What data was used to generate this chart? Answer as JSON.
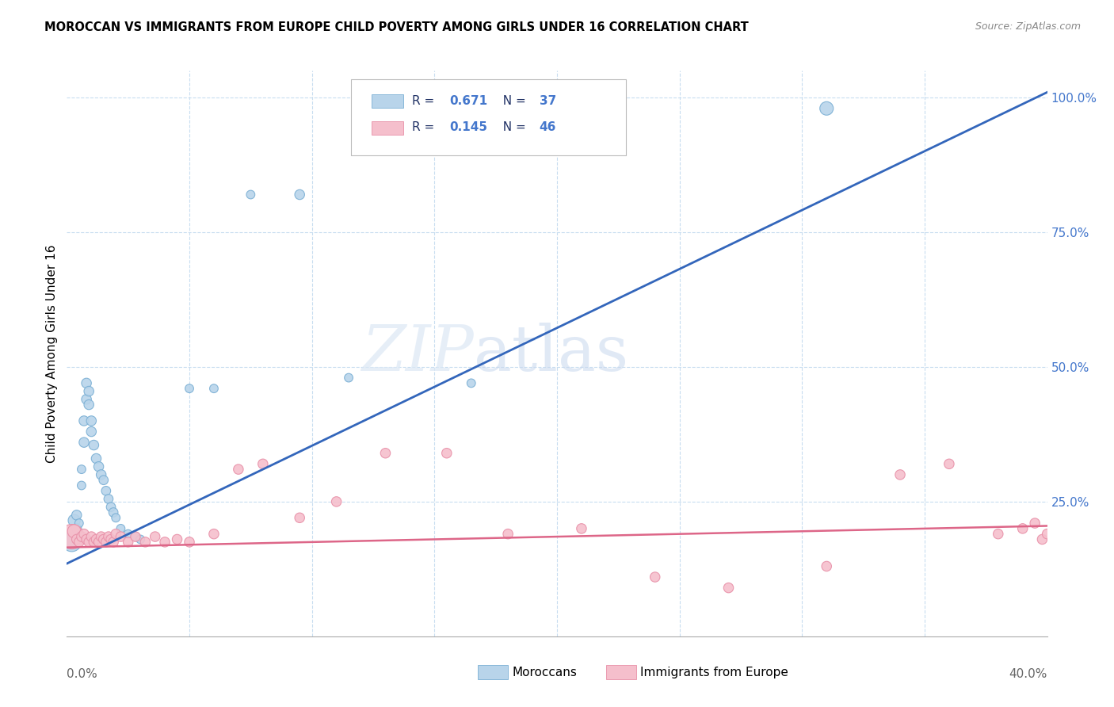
{
  "title": "MOROCCAN VS IMMIGRANTS FROM EUROPE CHILD POVERTY AMONG GIRLS UNDER 16 CORRELATION CHART",
  "source": "Source: ZipAtlas.com",
  "ylabel": "Child Poverty Among Girls Under 16",
  "xmin": 0.0,
  "xmax": 0.4,
  "ymin": 0.0,
  "ymax": 1.05,
  "moroccan_color": "#b8d4ea",
  "moroccan_edge_color": "#7aafd4",
  "europe_color": "#f5bfcc",
  "europe_edge_color": "#e890a8",
  "line_blue": "#3366bb",
  "line_pink": "#dd6688",
  "legend_R_blue": "R = 0.671",
  "legend_N_blue": "N = 37",
  "legend_R_pink": "R = 0.145",
  "legend_N_pink": "N = 46",
  "watermark_zip": "ZIP",
  "watermark_atlas": "atlas",
  "blue_line_x0": 0.0,
  "blue_line_y0": 0.135,
  "blue_line_x1": 0.4,
  "blue_line_y1": 1.01,
  "pink_line_x0": 0.0,
  "pink_line_y0": 0.165,
  "pink_line_x1": 0.4,
  "pink_line_y1": 0.205,
  "moroccan_x": [
    0.002,
    0.003,
    0.004,
    0.004,
    0.005,
    0.005,
    0.006,
    0.006,
    0.007,
    0.007,
    0.008,
    0.008,
    0.009,
    0.009,
    0.01,
    0.01,
    0.011,
    0.012,
    0.013,
    0.014,
    0.015,
    0.016,
    0.017,
    0.018,
    0.019,
    0.02,
    0.022,
    0.025,
    0.028,
    0.03,
    0.05,
    0.06,
    0.075,
    0.095,
    0.115,
    0.165,
    0.31
  ],
  "moroccan_y": [
    0.175,
    0.215,
    0.2,
    0.225,
    0.185,
    0.21,
    0.28,
    0.31,
    0.36,
    0.4,
    0.44,
    0.47,
    0.455,
    0.43,
    0.4,
    0.38,
    0.355,
    0.33,
    0.315,
    0.3,
    0.29,
    0.27,
    0.255,
    0.24,
    0.23,
    0.22,
    0.2,
    0.19,
    0.185,
    0.18,
    0.46,
    0.46,
    0.82,
    0.82,
    0.48,
    0.47,
    0.98
  ],
  "moroccan_sizes": [
    300,
    120,
    80,
    80,
    60,
    60,
    60,
    60,
    80,
    80,
    80,
    80,
    80,
    80,
    80,
    80,
    80,
    80,
    80,
    80,
    70,
    70,
    70,
    70,
    70,
    60,
    60,
    60,
    60,
    60,
    60,
    60,
    60,
    80,
    60,
    60,
    150
  ],
  "europe_x": [
    0.002,
    0.003,
    0.004,
    0.005,
    0.006,
    0.007,
    0.008,
    0.009,
    0.01,
    0.011,
    0.012,
    0.013,
    0.014,
    0.015,
    0.016,
    0.017,
    0.018,
    0.019,
    0.02,
    0.022,
    0.025,
    0.028,
    0.032,
    0.036,
    0.04,
    0.045,
    0.05,
    0.06,
    0.07,
    0.08,
    0.095,
    0.11,
    0.13,
    0.155,
    0.18,
    0.21,
    0.24,
    0.27,
    0.31,
    0.34,
    0.36,
    0.38,
    0.39,
    0.395,
    0.398,
    0.4
  ],
  "europe_y": [
    0.185,
    0.195,
    0.18,
    0.175,
    0.185,
    0.19,
    0.18,
    0.175,
    0.185,
    0.175,
    0.18,
    0.175,
    0.185,
    0.18,
    0.175,
    0.185,
    0.18,
    0.175,
    0.19,
    0.185,
    0.175,
    0.185,
    0.175,
    0.185,
    0.175,
    0.18,
    0.175,
    0.19,
    0.31,
    0.32,
    0.22,
    0.25,
    0.34,
    0.34,
    0.19,
    0.2,
    0.11,
    0.09,
    0.13,
    0.3,
    0.32,
    0.19,
    0.2,
    0.21,
    0.18,
    0.19
  ],
  "europe_sizes": [
    500,
    150,
    80,
    80,
    80,
    80,
    80,
    80,
    80,
    80,
    80,
    80,
    80,
    80,
    80,
    80,
    80,
    80,
    80,
    80,
    80,
    80,
    80,
    80,
    80,
    80,
    80,
    80,
    80,
    80,
    80,
    80,
    80,
    80,
    80,
    80,
    80,
    80,
    80,
    80,
    80,
    80,
    80,
    80,
    80,
    80
  ]
}
